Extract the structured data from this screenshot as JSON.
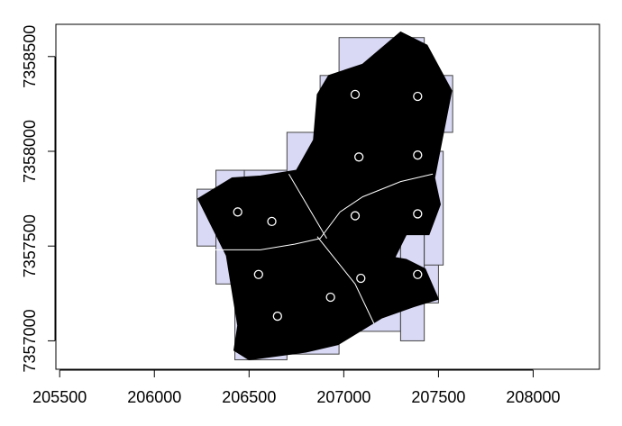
{
  "chart_data": {
    "type": "scatter",
    "title": "",
    "xlabel": "",
    "ylabel": "",
    "xlim": [
      205480,
      208350
    ],
    "ylim": [
      7356850,
      7358670
    ],
    "x_ticks": [
      205500,
      206000,
      206500,
      207000,
      207500,
      208000
    ],
    "y_ticks": [
      7357000,
      7357500,
      7358000,
      7358500
    ],
    "grid": false,
    "colors": {
      "grid_cells": "#d9d9f5",
      "grid_cell_border": "#444444",
      "polygon_fill": "#000000",
      "division_line": "#ffffff",
      "point_stroke": "#ffffff"
    },
    "grid_cells": [
      [
        206225,
        7357500,
        206325,
        7357800
      ],
      [
        206325,
        7357300,
        206475,
        7357900
      ],
      [
        206475,
        7357200,
        206700,
        7357900
      ],
      [
        206425,
        7356900,
        206700,
        7357200
      ],
      [
        206700,
        7356930,
        206975,
        7357500
      ],
      [
        206700,
        7357500,
        206875,
        7358100
      ],
      [
        206875,
        7357500,
        206975,
        7358400
      ],
      [
        206975,
        7357050,
        207300,
        7358600
      ],
      [
        207300,
        7357000,
        207425,
        7358600
      ],
      [
        207425,
        7357200,
        207500,
        7358400
      ],
      [
        207425,
        7357400,
        207525,
        7358000
      ],
      [
        207500,
        7358100,
        207575,
        7358400
      ]
    ],
    "study_area": [
      [
        206500,
        7356900
      ],
      [
        206800,
        7356940
      ],
      [
        206970,
        7356980
      ],
      [
        207200,
        7357120
      ],
      [
        207370,
        7357180
      ],
      [
        207500,
        7357220
      ],
      [
        207430,
        7357380
      ],
      [
        207330,
        7357430
      ],
      [
        207270,
        7357440
      ],
      [
        207330,
        7357560
      ],
      [
        207450,
        7357560
      ],
      [
        207510,
        7357720
      ],
      [
        207480,
        7357860
      ],
      [
        207570,
        7358320
      ],
      [
        207440,
        7358560
      ],
      [
        207300,
        7358630
      ],
      [
        207100,
        7358460
      ],
      [
        206920,
        7358400
      ],
      [
        206860,
        7358300
      ],
      [
        206840,
        7358060
      ],
      [
        206750,
        7357900
      ],
      [
        206560,
        7357870
      ],
      [
        206410,
        7357860
      ],
      [
        206230,
        7357750
      ],
      [
        206380,
        7357450
      ],
      [
        206440,
        7357080
      ],
      [
        206420,
        7356950
      ]
    ],
    "division_lines": [
      [
        [
          206710,
          7357880
        ],
        [
          206910,
          7357540
        ]
      ],
      [
        [
          206260,
          7357480
        ],
        [
          206560,
          7357480
        ],
        [
          206740,
          7357510
        ],
        [
          206875,
          7357540
        ],
        [
          206980,
          7357680
        ],
        [
          207100,
          7357760
        ],
        [
          207300,
          7357840
        ],
        [
          207470,
          7357880
        ]
      ],
      [
        [
          206860,
          7357550
        ],
        [
          207060,
          7357300
        ],
        [
          207160,
          7357090
        ]
      ]
    ],
    "x": [
      207060,
      207390,
      207080,
      207390,
      206440,
      206620,
      207060,
      207390,
      206550,
      207090,
      206930,
      207390,
      206650
    ],
    "y": [
      7358300,
      7358290,
      7357970,
      7357980,
      7357680,
      7357630,
      7357660,
      7357670,
      7357350,
      7357330,
      7357230,
      7357350,
      7357130
    ]
  }
}
